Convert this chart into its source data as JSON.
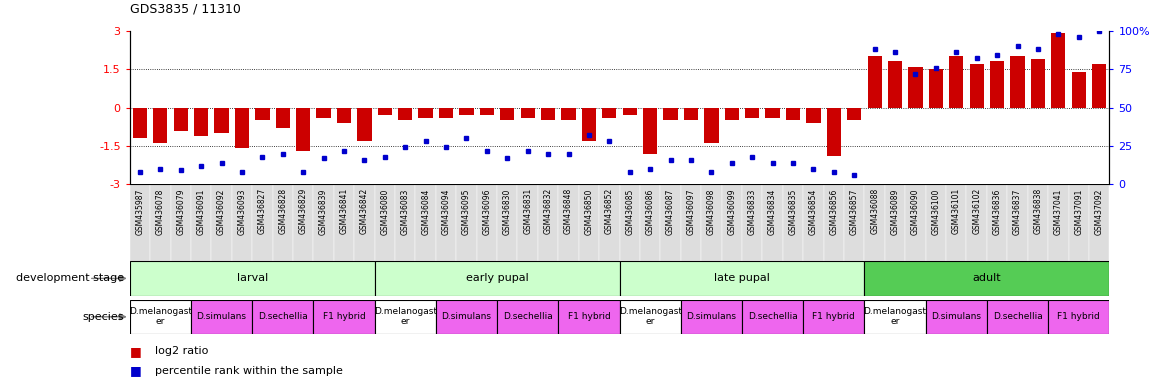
{
  "title": "GDS3835 / 11310",
  "samples": [
    "GSM435987",
    "GSM436078",
    "GSM436079",
    "GSM436091",
    "GSM436092",
    "GSM436093",
    "GSM436827",
    "GSM436828",
    "GSM436829",
    "GSM436839",
    "GSM436841",
    "GSM436842",
    "GSM436080",
    "GSM436083",
    "GSM436084",
    "GSM436094",
    "GSM436095",
    "GSM436096",
    "GSM436830",
    "GSM436831",
    "GSM436832",
    "GSM436848",
    "GSM436850",
    "GSM436852",
    "GSM436085",
    "GSM436086",
    "GSM436087",
    "GSM436097",
    "GSM436098",
    "GSM436099",
    "GSM436833",
    "GSM436834",
    "GSM436835",
    "GSM436854",
    "GSM436856",
    "GSM436857",
    "GSM436088",
    "GSM436089",
    "GSM436090",
    "GSM436100",
    "GSM436101",
    "GSM436102",
    "GSM436836",
    "GSM436837",
    "GSM436838",
    "GSM437041",
    "GSM437091",
    "GSM437092"
  ],
  "log2_ratio": [
    -1.2,
    -1.4,
    -0.9,
    -1.1,
    -1.0,
    -1.6,
    -0.5,
    -0.8,
    -1.7,
    -0.4,
    -0.6,
    -1.3,
    -0.3,
    -0.5,
    -0.4,
    -0.4,
    -0.3,
    -0.3,
    -0.5,
    -0.4,
    -0.5,
    -0.5,
    -1.3,
    -0.4,
    -0.3,
    -1.8,
    -0.5,
    -0.5,
    -1.4,
    -0.5,
    -0.4,
    -0.4,
    -0.5,
    -0.6,
    -1.9,
    -0.5,
    2.0,
    1.8,
    1.6,
    1.5,
    2.0,
    1.7,
    1.8,
    2.0,
    1.9,
    2.9,
    1.4,
    1.7
  ],
  "percentile": [
    8,
    10,
    9,
    12,
    14,
    8,
    18,
    20,
    8,
    17,
    22,
    16,
    18,
    24,
    28,
    24,
    30,
    22,
    17,
    22,
    20,
    20,
    32,
    28,
    8,
    10,
    16,
    16,
    8,
    14,
    18,
    14,
    14,
    10,
    8,
    6,
    88,
    86,
    72,
    76,
    86,
    82,
    84,
    90,
    88,
    98,
    96,
    100
  ],
  "bar_color": "#cc0000",
  "dot_color": "#0000cc",
  "ylim_left": [
    -3,
    3
  ],
  "ylim_right": [
    0,
    100
  ],
  "yticks_left": [
    -3,
    -1.5,
    0,
    1.5,
    3
  ],
  "ytick_labels_left": [
    "-3",
    "-1.5",
    "0",
    "1.5",
    "3"
  ],
  "yticks_right": [
    0,
    25,
    50,
    75,
    100
  ],
  "ytick_labels_right": [
    "0",
    "25",
    "50",
    "75",
    "100%"
  ],
  "hlines": [
    -1.5,
    0,
    1.5
  ],
  "stages": [
    {
      "label": "larval",
      "start": 0,
      "end": 12,
      "dark": false
    },
    {
      "label": "early pupal",
      "start": 12,
      "end": 24,
      "dark": false
    },
    {
      "label": "late pupal",
      "start": 24,
      "end": 36,
      "dark": false
    },
    {
      "label": "adult",
      "start": 36,
      "end": 48,
      "dark": true
    }
  ],
  "stage_light_color": "#ccffcc",
  "stage_dark_color": "#55cc55",
  "species_groups": [
    {
      "label": "D.melanogast\ner",
      "start": 0,
      "end": 3,
      "pink": false
    },
    {
      "label": "D.simulans",
      "start": 3,
      "end": 6,
      "pink": true
    },
    {
      "label": "D.sechellia",
      "start": 6,
      "end": 9,
      "pink": true
    },
    {
      "label": "F1 hybrid",
      "start": 9,
      "end": 12,
      "pink": true
    },
    {
      "label": "D.melanogast\ner",
      "start": 12,
      "end": 15,
      "pink": false
    },
    {
      "label": "D.simulans",
      "start": 15,
      "end": 18,
      "pink": true
    },
    {
      "label": "D.sechellia",
      "start": 18,
      "end": 21,
      "pink": true
    },
    {
      "label": "F1 hybrid",
      "start": 21,
      "end": 24,
      "pink": true
    },
    {
      "label": "D.melanogast\ner",
      "start": 24,
      "end": 27,
      "pink": false
    },
    {
      "label": "D.simulans",
      "start": 27,
      "end": 30,
      "pink": true
    },
    {
      "label": "D.sechellia",
      "start": 30,
      "end": 33,
      "pink": true
    },
    {
      "label": "F1 hybrid",
      "start": 33,
      "end": 36,
      "pink": true
    },
    {
      "label": "D.melanogast\ner",
      "start": 36,
      "end": 39,
      "pink": false
    },
    {
      "label": "D.simulans",
      "start": 39,
      "end": 42,
      "pink": true
    },
    {
      "label": "D.sechellia",
      "start": 42,
      "end": 45,
      "pink": true
    },
    {
      "label": "F1 hybrid",
      "start": 45,
      "end": 48,
      "pink": true
    }
  ],
  "pink_color": "#ee66ee",
  "white_color": "#ffffff",
  "sample_bg_color": "#dddddd",
  "legend_items": [
    {
      "label": "log2 ratio",
      "color": "#cc0000"
    },
    {
      "label": "percentile rank within the sample",
      "color": "#0000cc"
    }
  ]
}
